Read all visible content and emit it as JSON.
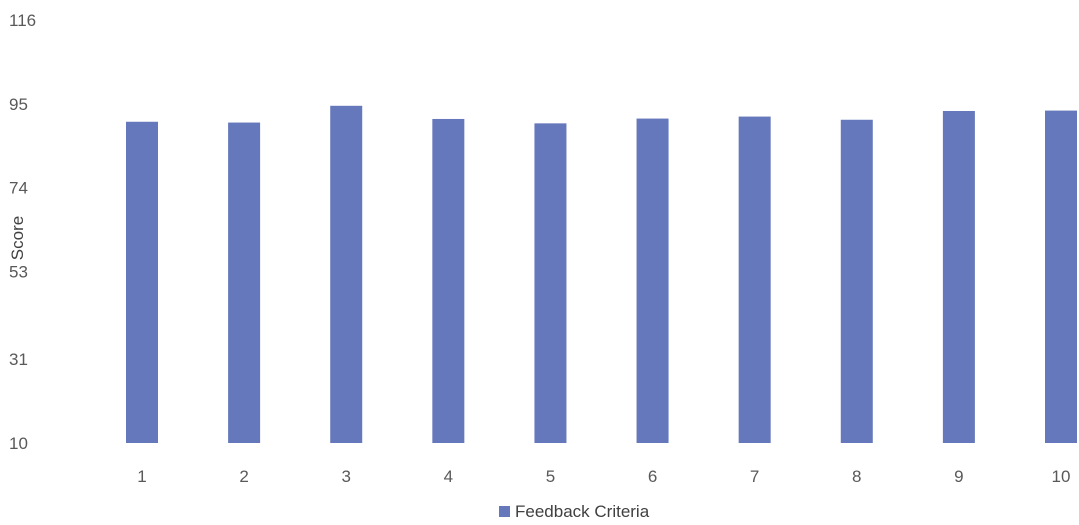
{
  "chart_data": {
    "type": "bar",
    "title": "",
    "xlabel": "",
    "ylabel": "Score",
    "ylim": [
      10,
      116
    ],
    "y_ticks": [
      "10",
      "31",
      "53",
      "74",
      "95",
      "116"
    ],
    "categories": [
      "1",
      "2",
      "3",
      "4",
      "5",
      "6",
      "7",
      "8",
      "9",
      "10"
    ],
    "series": [
      {
        "name": "Feedback Criteria",
        "values": [
          90.5,
          90.3,
          94.5,
          91.2,
          90.1,
          91.3,
          91.8,
          91.0,
          93.2,
          93.3
        ],
        "color": "#6478bb"
      }
    ],
    "grid": false,
    "legend": {
      "position": "bottom-center",
      "label": "Feedback Criteria"
    }
  }
}
